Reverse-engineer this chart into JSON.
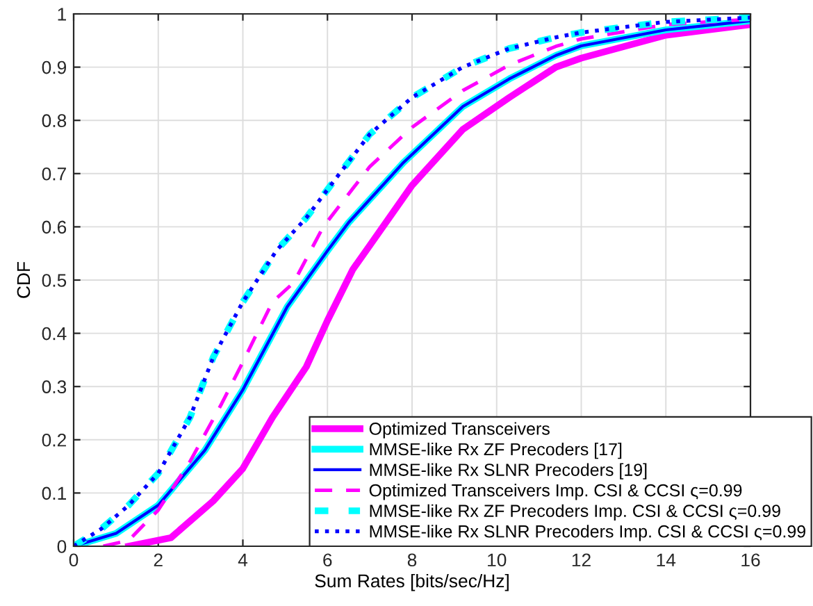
{
  "chart_data": {
    "type": "line",
    "xlabel": "Sum Rates [bits/sec/Hz]",
    "ylabel": "CDF",
    "xlim": [
      0,
      16
    ],
    "ylim": [
      0,
      1
    ],
    "xticks": [
      0,
      2,
      4,
      6,
      8,
      10,
      12,
      14,
      16
    ],
    "yticks": [
      0,
      0.1,
      0.2,
      0.3,
      0.4,
      0.5,
      0.6,
      0.7,
      0.8,
      0.9,
      1
    ],
    "grid": true,
    "legend": "bottom right",
    "marker": "none",
    "series": [
      {
        "name": "Optimized Transceivers",
        "color": "#ff00ff",
        "line_style": "solid",
        "x": [
          1.3,
          2.3,
          3.3,
          4,
          4.7,
          5.5,
          6,
          6.6,
          7,
          8,
          9.2,
          10.3,
          11.4,
          12,
          14,
          16
        ],
        "values": [
          0,
          0.016,
          0.085,
          0.146,
          0.242,
          0.337,
          0.424,
          0.52,
          0.565,
          0.678,
          0.783,
          0.843,
          0.9,
          0.917,
          0.96,
          0.98
        ]
      },
      {
        "name": "MMSE-like Rx ZF Precoders [17]",
        "color": "#00ffff",
        "line_style": "solid",
        "x": [
          0,
          1,
          2,
          3.1,
          4,
          5.05,
          6,
          6.5,
          7.8,
          9.2,
          10.3,
          11.4,
          12,
          14,
          16
        ],
        "values": [
          0,
          0.024,
          0.077,
          0.18,
          0.294,
          0.45,
          0.555,
          0.608,
          0.721,
          0.826,
          0.878,
          0.922,
          0.94,
          0.97,
          0.987
        ]
      },
      {
        "name": "MMSE-like Rx SLNR Precoders [19]",
        "color": "#0000ff",
        "line_style": "solid",
        "x": [
          0,
          1,
          2,
          3.1,
          4,
          5.05,
          6,
          6.5,
          7.8,
          9.2,
          10.3,
          11.4,
          12,
          14,
          16
        ],
        "values": [
          0,
          0.024,
          0.077,
          0.18,
          0.294,
          0.45,
          0.555,
          0.608,
          0.721,
          0.826,
          0.878,
          0.922,
          0.94,
          0.97,
          0.987
        ]
      },
      {
        "name": "Optimized Transceivers Imp. CSI & CCSI ς=0.99",
        "color": "#ff00ff",
        "line_style": "dashed",
        "x": [
          0.7,
          1.3,
          2,
          2.75,
          3.5,
          4,
          4.7,
          5.2,
          5.9,
          7,
          8,
          9.2,
          10.3,
          11.4,
          12,
          14,
          16
        ],
        "values": [
          0,
          0.011,
          0.068,
          0.159,
          0.268,
          0.346,
          0.459,
          0.495,
          0.6,
          0.713,
          0.787,
          0.856,
          0.904,
          0.939,
          0.953,
          0.98,
          0.99
        ]
      },
      {
        "name": "MMSE-like Rx ZF Precoders Imp. CSI & CCSI ς=0.99",
        "color": "#00ffff",
        "line_style": "dashed",
        "x": [
          0,
          0.66,
          1.3,
          2,
          2.75,
          3.3,
          4,
          4.8,
          5.5,
          6.2,
          7,
          8,
          9.2,
          10.3,
          11.4,
          12,
          14,
          16
        ],
        "values": [
          0,
          0.033,
          0.077,
          0.137,
          0.242,
          0.355,
          0.459,
          0.556,
          0.617,
          0.691,
          0.774,
          0.843,
          0.9,
          0.935,
          0.956,
          0.965,
          0.985,
          0.993
        ]
      },
      {
        "name": "MMSE-like Rx SLNR Precoders Imp. CSI & CCSI ς=0.99",
        "color": "#0000ff",
        "line_style": "dotted",
        "x": [
          0,
          0.66,
          1.3,
          2,
          2.75,
          3.3,
          4,
          4.8,
          5.5,
          6.2,
          7,
          8,
          9.2,
          10.3,
          11.4,
          12,
          14,
          16
        ],
        "values": [
          0,
          0.033,
          0.077,
          0.137,
          0.242,
          0.355,
          0.459,
          0.556,
          0.617,
          0.691,
          0.774,
          0.843,
          0.9,
          0.935,
          0.956,
          0.965,
          0.985,
          0.993
        ]
      }
    ]
  }
}
